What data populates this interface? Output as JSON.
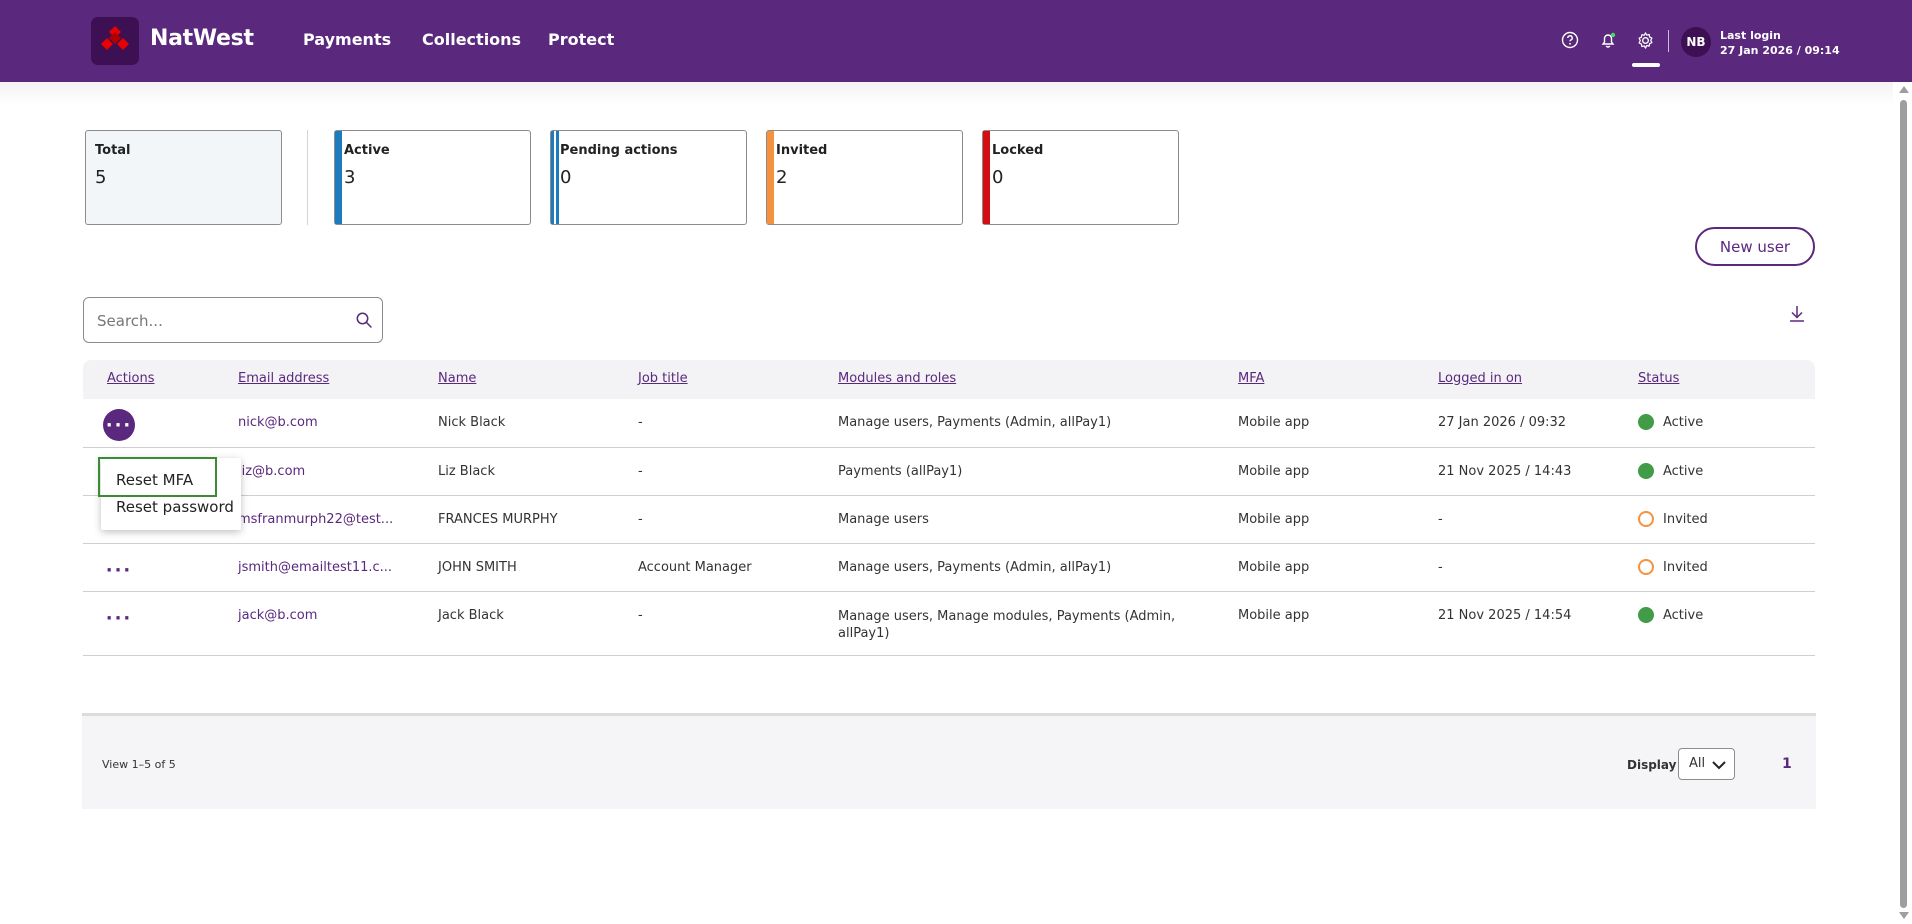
{
  "header": {
    "brand": "NatWest",
    "nav": [
      "Payments",
      "Collections",
      "Protect"
    ],
    "icons": [
      "help-icon",
      "bell-icon",
      "gear-icon"
    ],
    "avatar_initials": "NB",
    "last_login_label": "Last login",
    "last_login_value": "27 Jan 2026 / 09:14",
    "brand_color": "#5a287d"
  },
  "stats": [
    {
      "label": "Total",
      "value": "5",
      "color": ""
    },
    {
      "label": "Active",
      "value": "3",
      "color": "#1d7bbf"
    },
    {
      "label": "Pending actions",
      "value": "0",
      "color": "#1d7bbf"
    },
    {
      "label": "Invited",
      "value": "2",
      "color": "#f5923e"
    },
    {
      "label": "Locked",
      "value": "0",
      "color": "#d40f14"
    }
  ],
  "toolbar": {
    "new_user_label": "New user",
    "search_placeholder": "Search...",
    "search_value": ""
  },
  "table": {
    "columns": [
      "Actions",
      "Email address",
      "Name",
      "Job title",
      "Modules and roles",
      "MFA",
      "Logged in on",
      "Status"
    ],
    "rows": [
      {
        "email": "nick@b.com",
        "name": "Nick Black",
        "job": "-",
        "modules": "Manage users, Payments (Admin, allPay1)",
        "mfa": "Mobile app",
        "logged": "27 Jan 2026 / 09:32",
        "status": "Active"
      },
      {
        "email": "liz@b.com",
        "name": "Liz Black",
        "job": "-",
        "modules": "Payments (allPay1)",
        "mfa": "Mobile app",
        "logged": "21 Nov 2025 / 14:43",
        "status": "Active"
      },
      {
        "email": "msfranmurph22@test...",
        "name": "FRANCES MURPHY",
        "job": "-",
        "modules": "Manage users",
        "mfa": "Mobile app",
        "logged": "-",
        "status": "Invited"
      },
      {
        "email": "jsmith@emailtest11.c...",
        "name": "JOHN SMITH",
        "job": "Account Manager",
        "modules": "Manage users, Payments (Admin, allPay1)",
        "mfa": "Mobile app",
        "logged": "-",
        "status": "Invited"
      },
      {
        "email": "jack@b.com",
        "name": "Jack Black",
        "job": "-",
        "modules": "Manage users, Manage modules, Payments (Admin, allPay1)",
        "mfa": "Mobile app",
        "logged": "21 Nov 2025 / 14:54",
        "status": "Active"
      }
    ],
    "actions_glyph": "···"
  },
  "menu": {
    "items": [
      "Reset MFA",
      "Reset password"
    ]
  },
  "footer": {
    "view_count": "View 1–5 of 5",
    "display_label": "Display",
    "display_value": "All",
    "page": "1"
  }
}
